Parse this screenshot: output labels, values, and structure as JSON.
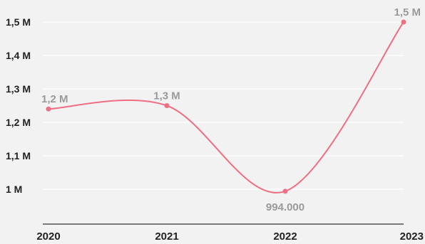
{
  "chart_data": {
    "type": "line",
    "x": [
      "2020",
      "2021",
      "2022",
      "2023"
    ],
    "series": [
      {
        "values": [
          1240000,
          1250000,
          994000,
          1500000
        ],
        "labels": [
          "1,2 M",
          "1,3 M",
          "994.000",
          "1,5 M"
        ]
      }
    ],
    "y_ticks": [
      {
        "value": 1000000,
        "label": "1 M"
      },
      {
        "value": 1100000,
        "label": "1,1 M"
      },
      {
        "value": 1200000,
        "label": "1,2 M"
      },
      {
        "value": 1300000,
        "label": "1,3 M"
      },
      {
        "value": 1400000,
        "label": "1,4 M"
      },
      {
        "value": 1500000,
        "label": "1,5 M"
      }
    ],
    "ylim": [
      900000,
      1500000
    ],
    "grid": true,
    "line_color": "#ef6f82",
    "label_color": "#9a9a9a",
    "axis_color": "#333333",
    "background": "#f2f2f2"
  }
}
